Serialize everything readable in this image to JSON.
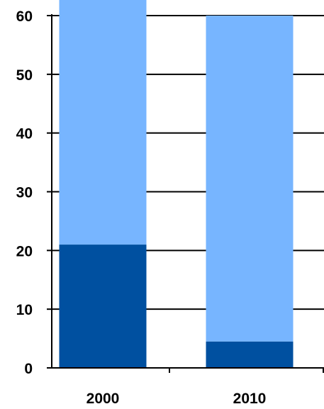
{
  "chart_data": {
    "type": "bar",
    "stacked": true,
    "categories": [
      "2000",
      "2010"
    ],
    "series": [
      {
        "values": [
          21,
          4.5
        ],
        "color": "#0050A0"
      },
      {
        "values": [
          44,
          55.5
        ],
        "color": "#77B5FF"
      }
    ],
    "ylim": [
      0,
      60
    ],
    "yticks": [
      0,
      10,
      20,
      30,
      40,
      50,
      60
    ],
    "ytick_labels": [
      "0",
      "10",
      "20",
      "30",
      "40",
      "50",
      "60"
    ],
    "grid": true,
    "legend": "none",
    "title": "",
    "xlabel": "",
    "ylabel": ""
  }
}
